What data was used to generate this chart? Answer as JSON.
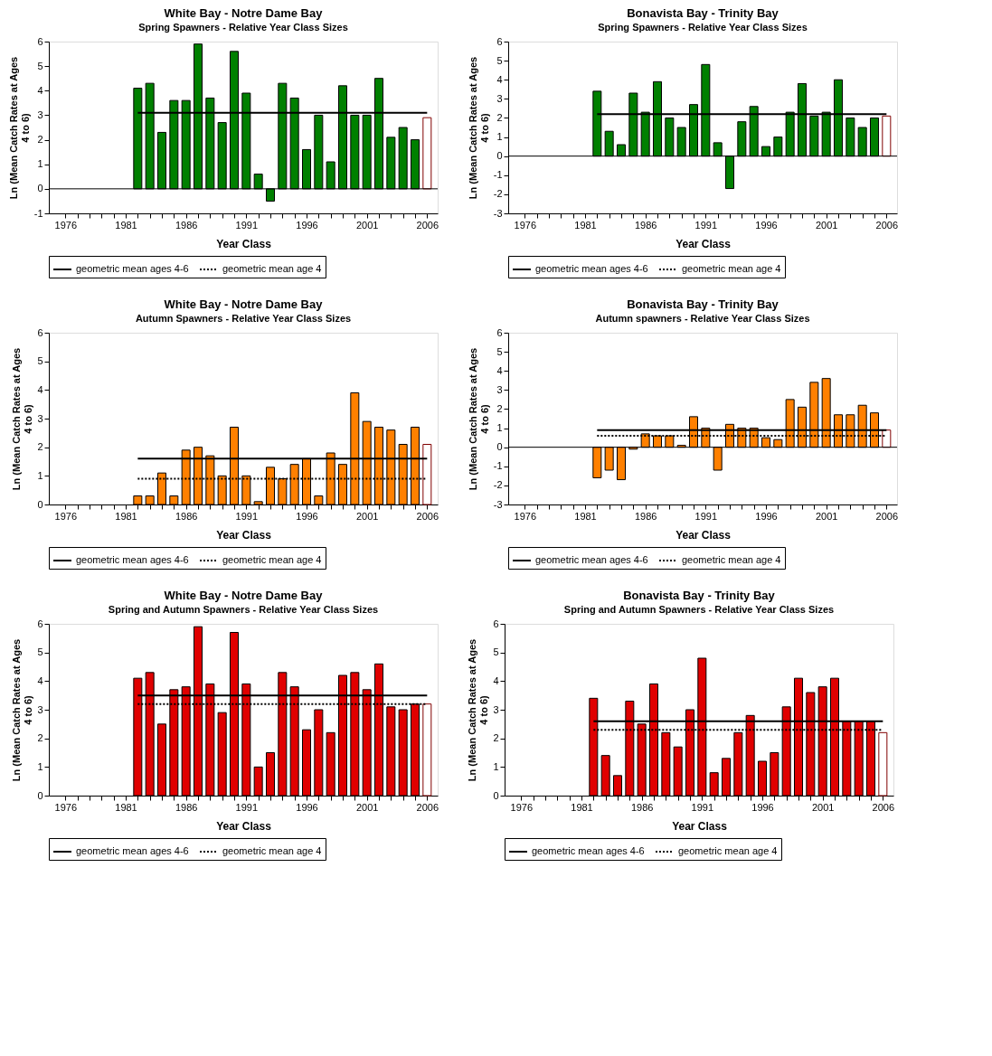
{
  "chart_data": [
    {
      "type": "bar",
      "title": "White Bay - Notre Dame Bay",
      "subtitle": "Spring Spawners - Relative Year Class Sizes",
      "xlabel": "Year Class",
      "ylabel": "Ln (Mean Catch Rates at Ages\n4 to 6)",
      "xlim": [
        1975,
        2006.5
      ],
      "ylim": [
        -1,
        6
      ],
      "yticks": [
        -1,
        0,
        1,
        2,
        3,
        4,
        5,
        6
      ],
      "xticks": [
        1976,
        {
          "value": 1977,
          "label": null
        },
        {
          "value": 1978,
          "label": null
        },
        {
          "value": 1979,
          "label": null
        },
        {
          "value": 1980,
          "label": null
        },
        1981,
        {
          "value": 1982,
          "label": null
        },
        {
          "value": 1983,
          "label": null
        },
        {
          "value": 1984,
          "label": null
        },
        {
          "value": 1985,
          "label": null
        },
        1986,
        {
          "value": 1987,
          "label": null
        },
        {
          "value": 1988,
          "label": null
        },
        {
          "value": 1989,
          "label": null
        },
        {
          "value": 1990,
          "label": null
        },
        1991,
        {
          "value": 1992,
          "label": null
        },
        {
          "value": 1993,
          "label": null
        },
        {
          "value": 1994,
          "label": null
        },
        {
          "value": 1995,
          "label": null
        },
        1996,
        {
          "value": 1997,
          "label": null
        },
        {
          "value": 1998,
          "label": null
        },
        {
          "value": 1999,
          "label": null
        },
        {
          "value": 2000,
          "label": null
        },
        2001,
        {
          "value": 2002,
          "label": null
        },
        {
          "value": 2003,
          "label": null
        },
        {
          "value": 2004,
          "label": null
        },
        {
          "value": 2005,
          "label": null
        },
        2006
      ],
      "grid": false,
      "legend": "bottom",
      "marker": "none",
      "ref_lines": [
        {
          "axis": "y",
          "value": 0,
          "color": "#000000"
        }
      ],
      "series": [
        {
          "color": "#008000",
          "x": [
            1982,
            1983,
            1984,
            1985,
            1986,
            1987,
            1988,
            1989,
            1990,
            1991,
            1992,
            1993,
            1994,
            1995,
            1996,
            1997,
            1998,
            1999,
            2000,
            2001,
            2002,
            2003,
            2004,
            2005
          ],
          "values": [
            4.1,
            4.3,
            2.3,
            3.6,
            3.6,
            5.9,
            3.7,
            2.7,
            5.6,
            3.9,
            0.6,
            -0.5,
            4.3,
            3.7,
            1.6,
            3.0,
            1.1,
            4.2,
            3.0,
            3.0,
            4.5,
            2.1,
            2.5,
            2.0
          ]
        },
        {
          "color": "#ffffff",
          "x": [
            2006
          ],
          "values": [
            2.9
          ]
        },
        {
          "type": "line",
          "name": "geometric mean ages 4-6",
          "color": "#000000",
          "line_style": "solid",
          "x": [
            1982,
            2006
          ],
          "values": [
            3.1,
            3.1
          ]
        },
        {
          "type": "line",
          "name": "geometric mean age 4",
          "line_style": "dotted"
        }
      ]
    },
    {
      "type": "bar",
      "title": "Bonavista Bay - Trinity Bay",
      "subtitle": "Spring Spawners - Relative Year Class Sizes",
      "xlabel": "Year Class",
      "ylabel": "Ln (Mean Catch Rates at Ages\n4 to 6)",
      "xlim": [
        1975,
        2006.5
      ],
      "ylim": [
        -3,
        6
      ],
      "yticks": [
        -3,
        -2,
        -1,
        0,
        1,
        2,
        3,
        4,
        5,
        6
      ],
      "xticks": [
        1976,
        {
          "value": 1977,
          "label": null
        },
        {
          "value": 1978,
          "label": null
        },
        {
          "value": 1979,
          "label": null
        },
        {
          "value": 1980,
          "label": null
        },
        1981,
        {
          "value": 1982,
          "label": null
        },
        {
          "value": 1983,
          "label": null
        },
        {
          "value": 1984,
          "label": null
        },
        {
          "value": 1985,
          "label": null
        },
        1986,
        {
          "value": 1987,
          "label": null
        },
        {
          "value": 1988,
          "label": null
        },
        {
          "value": 1989,
          "label": null
        },
        {
          "value": 1990,
          "label": null
        },
        1991,
        {
          "value": 1992,
          "label": null
        },
        {
          "value": 1993,
          "label": null
        },
        {
          "value": 1994,
          "label": null
        },
        {
          "value": 1995,
          "label": null
        },
        1996,
        {
          "value": 1997,
          "label": null
        },
        {
          "value": 1998,
          "label": null
        },
        {
          "value": 1999,
          "label": null
        },
        {
          "value": 2000,
          "label": null
        },
        2001,
        {
          "value": 2002,
          "label": null
        },
        {
          "value": 2003,
          "label": null
        },
        {
          "value": 2004,
          "label": null
        },
        {
          "value": 2005,
          "label": null
        },
        2006
      ],
      "grid": false,
      "legend": "bottom",
      "marker": "none",
      "ref_lines": [
        {
          "axis": "y",
          "value": 0,
          "color": "#000000"
        }
      ],
      "series": [
        {
          "color": "#008000",
          "x": [
            1982,
            1983,
            1984,
            1985,
            1986,
            1987,
            1988,
            1989,
            1990,
            1991,
            1992,
            1993,
            1994,
            1995,
            1996,
            1997,
            1998,
            1999,
            2000,
            2001,
            2002,
            2003,
            2004,
            2005
          ],
          "values": [
            3.4,
            1.3,
            0.6,
            3.3,
            2.3,
            3.9,
            2.0,
            1.5,
            2.7,
            4.8,
            0.7,
            -1.7,
            1.8,
            2.6,
            0.5,
            1.0,
            2.3,
            3.8,
            2.1,
            2.3,
            4.0,
            2.0,
            1.5,
            2.0
          ]
        },
        {
          "color": "#ffffff",
          "x": [
            2006
          ],
          "values": [
            2.1
          ]
        },
        {
          "type": "line",
          "name": "geometric mean ages 4-6",
          "color": "#000000",
          "line_style": "solid",
          "x": [
            1982,
            2006
          ],
          "values": [
            2.2,
            2.2
          ]
        },
        {
          "type": "line",
          "name": "geometric mean age 4",
          "line_style": "dotted"
        }
      ]
    },
    {
      "type": "bar",
      "title": "White Bay - Notre Dame Bay",
      "subtitle": "Autumn Spawners - Relative Year Class Sizes",
      "xlabel": "Year Class",
      "ylabel": "Ln (Mean Catch Rates at Ages\n4 to 6)",
      "xlim": [
        1975,
        2006.5
      ],
      "ylim": [
        0,
        6
      ],
      "yticks": [
        0,
        1,
        2,
        3,
        4,
        5,
        6
      ],
      "xticks": [
        1976,
        {
          "value": 1977,
          "label": null
        },
        {
          "value": 1978,
          "label": null
        },
        {
          "value": 1979,
          "label": null
        },
        {
          "value": 1980,
          "label": null
        },
        1981,
        {
          "value": 1982,
          "label": null
        },
        {
          "value": 1983,
          "label": null
        },
        {
          "value": 1984,
          "label": null
        },
        {
          "value": 1985,
          "label": null
        },
        1986,
        {
          "value": 1987,
          "label": null
        },
        {
          "value": 1988,
          "label": null
        },
        {
          "value": 1989,
          "label": null
        },
        {
          "value": 1990,
          "label": null
        },
        1991,
        {
          "value": 1992,
          "label": null
        },
        {
          "value": 1993,
          "label": null
        },
        {
          "value": 1994,
          "label": null
        },
        {
          "value": 1995,
          "label": null
        },
        1996,
        {
          "value": 1997,
          "label": null
        },
        {
          "value": 1998,
          "label": null
        },
        {
          "value": 1999,
          "label": null
        },
        {
          "value": 2000,
          "label": null
        },
        2001,
        {
          "value": 2002,
          "label": null
        },
        {
          "value": 2003,
          "label": null
        },
        {
          "value": 2004,
          "label": null
        },
        {
          "value": 2005,
          "label": null
        },
        2006
      ],
      "grid": false,
      "legend": "bottom",
      "marker": "none",
      "series": [
        {
          "color": "#ff8000",
          "x": [
            1982,
            1983,
            1984,
            1985,
            1986,
            1987,
            1988,
            1989,
            1990,
            1991,
            1992,
            1993,
            1994,
            1995,
            1996,
            1997,
            1998,
            1999,
            2000,
            2001,
            2002,
            2003,
            2004,
            2005
          ],
          "values": [
            0.3,
            0.3,
            1.1,
            0.3,
            1.9,
            2.0,
            1.7,
            1.0,
            2.7,
            1.0,
            0.1,
            1.3,
            0.9,
            1.4,
            1.6,
            0.3,
            1.8,
            1.4,
            3.9,
            2.9,
            2.7,
            2.6,
            2.1,
            2.7
          ]
        },
        {
          "color": "#ffffff",
          "x": [
            2006
          ],
          "values": [
            2.1
          ]
        },
        {
          "type": "line",
          "name": "geometric mean ages 4-6",
          "color": "#000000",
          "line_style": "solid",
          "x": [
            1982,
            2006
          ],
          "values": [
            1.6,
            1.6
          ]
        },
        {
          "type": "line",
          "name": "geometric mean age 4",
          "color": "#000000",
          "line_style": "dotted",
          "x": [
            1982,
            2006
          ],
          "values": [
            0.9,
            0.9
          ]
        }
      ]
    },
    {
      "type": "bar",
      "title": "Bonavista Bay - Trinity Bay",
      "subtitle": "Autumn spawners - Relative Year Class Sizes",
      "xlabel": "Year Class",
      "ylabel": "Ln (Mean Catch Rates at Ages\n4 to 6)",
      "xlim": [
        1975,
        2006.5
      ],
      "ylim": [
        -3,
        6
      ],
      "yticks": [
        -3,
        -2,
        -1,
        0,
        1,
        2,
        3,
        4,
        5,
        6
      ],
      "xticks": [
        1976,
        {
          "value": 1977,
          "label": null
        },
        {
          "value": 1978,
          "label": null
        },
        {
          "value": 1979,
          "label": null
        },
        {
          "value": 1980,
          "label": null
        },
        1981,
        {
          "value": 1982,
          "label": null
        },
        {
          "value": 1983,
          "label": null
        },
        {
          "value": 1984,
          "label": null
        },
        {
          "value": 1985,
          "label": null
        },
        1986,
        {
          "value": 1987,
          "label": null
        },
        {
          "value": 1988,
          "label": null
        },
        {
          "value": 1989,
          "label": null
        },
        {
          "value": 1990,
          "label": null
        },
        1991,
        {
          "value": 1992,
          "label": null
        },
        {
          "value": 1993,
          "label": null
        },
        {
          "value": 1994,
          "label": null
        },
        {
          "value": 1995,
          "label": null
        },
        1996,
        {
          "value": 1997,
          "label": null
        },
        {
          "value": 1998,
          "label": null
        },
        {
          "value": 1999,
          "label": null
        },
        {
          "value": 2000,
          "label": null
        },
        2001,
        {
          "value": 2002,
          "label": null
        },
        {
          "value": 2003,
          "label": null
        },
        {
          "value": 2004,
          "label": null
        },
        {
          "value": 2005,
          "label": null
        },
        2006
      ],
      "grid": false,
      "legend": "bottom",
      "marker": "none",
      "ref_lines": [
        {
          "axis": "y",
          "value": 0,
          "color": "#000000"
        }
      ],
      "series": [
        {
          "color": "#ff8000",
          "x": [
            1982,
            1983,
            1984,
            1985,
            1986,
            1987,
            1988,
            1989,
            1990,
            1991,
            1992,
            1993,
            1994,
            1995,
            1996,
            1997,
            1998,
            1999,
            2000,
            2001,
            2002,
            2003,
            2004,
            2005
          ],
          "values": [
            -1.6,
            -1.2,
            -1.7,
            -0.1,
            0.7,
            0.6,
            0.6,
            0.1,
            1.6,
            1.0,
            -1.2,
            1.2,
            1.0,
            1.0,
            0.5,
            0.4,
            2.5,
            2.1,
            3.4,
            3.6,
            1.7,
            1.7,
            2.2,
            1.8
          ]
        },
        {
          "color": "#ffffff",
          "x": [
            2006
          ],
          "values": [
            0.9
          ]
        },
        {
          "type": "line",
          "name": "geometric mean ages 4-6",
          "color": "#000000",
          "line_style": "solid",
          "x": [
            1982,
            2006
          ],
          "values": [
            0.9,
            0.9
          ]
        },
        {
          "type": "line",
          "name": "geometric mean age 4",
          "color": "#000000",
          "line_style": "dotted",
          "x": [
            1982,
            2006
          ],
          "values": [
            0.6,
            0.6
          ]
        }
      ]
    },
    {
      "type": "bar",
      "title": "White Bay - Notre Dame Bay",
      "subtitle": "Spring and Autumn Spawners - Relative Year Class Sizes",
      "xlabel": "Year Class",
      "ylabel": "Ln (Mean Catch Rates at Ages\n4 to 6)",
      "xlim": [
        1975,
        2006.5
      ],
      "ylim": [
        0,
        6
      ],
      "yticks": [
        0,
        1,
        2,
        3,
        4,
        5,
        6
      ],
      "xticks": [
        1976,
        {
          "value": 1977,
          "label": null
        },
        {
          "value": 1978,
          "label": null
        },
        {
          "value": 1979,
          "label": null
        },
        {
          "value": 1980,
          "label": null
        },
        1981,
        {
          "value": 1982,
          "label": null
        },
        {
          "value": 1983,
          "label": null
        },
        {
          "value": 1984,
          "label": null
        },
        {
          "value": 1985,
          "label": null
        },
        1986,
        {
          "value": 1987,
          "label": null
        },
        {
          "value": 1988,
          "label": null
        },
        {
          "value": 1989,
          "label": null
        },
        {
          "value": 1990,
          "label": null
        },
        1991,
        {
          "value": 1992,
          "label": null
        },
        {
          "value": 1993,
          "label": null
        },
        {
          "value": 1994,
          "label": null
        },
        {
          "value": 1995,
          "label": null
        },
        1996,
        {
          "value": 1997,
          "label": null
        },
        {
          "value": 1998,
          "label": null
        },
        {
          "value": 1999,
          "label": null
        },
        {
          "value": 2000,
          "label": null
        },
        2001,
        {
          "value": 2002,
          "label": null
        },
        {
          "value": 2003,
          "label": null
        },
        {
          "value": 2004,
          "label": null
        },
        {
          "value": 2005,
          "label": null
        },
        2006
      ],
      "grid": false,
      "legend": "bottom",
      "marker": "none",
      "series": [
        {
          "color": "#e00000",
          "x": [
            1982,
            1983,
            1984,
            1985,
            1986,
            1987,
            1988,
            1989,
            1990,
            1991,
            1992,
            1993,
            1994,
            1995,
            1996,
            1997,
            1998,
            1999,
            2000,
            2001,
            2002,
            2003,
            2004,
            2005
          ],
          "values": [
            4.1,
            4.3,
            2.5,
            3.7,
            3.8,
            5.9,
            3.9,
            2.9,
            5.7,
            3.9,
            1.0,
            1.5,
            4.3,
            3.8,
            2.3,
            3.0,
            2.2,
            4.2,
            4.3,
            3.7,
            4.6,
            3.1,
            3.0,
            3.2
          ]
        },
        {
          "color": "#ffffff",
          "x": [
            2006
          ],
          "values": [
            3.2
          ]
        },
        {
          "type": "line",
          "name": "geometric mean ages 4-6",
          "color": "#000000",
          "line_style": "solid",
          "x": [
            1982,
            2006
          ],
          "values": [
            3.5,
            3.5
          ]
        },
        {
          "type": "line",
          "name": "geometric mean age 4",
          "color": "#000000",
          "line_style": "dotted",
          "x": [
            1982,
            2006
          ],
          "values": [
            3.2,
            3.2
          ]
        }
      ]
    },
    {
      "type": "bar",
      "title": "Bonavista Bay - Trinity Bay",
      "subtitle": "Spring and Autumn Spawners - Relative Year Class Sizes",
      "xlabel": "Year Class",
      "ylabel": "Ln (Mean Catch Rates at Ages\n4 to 6)",
      "xlim": [
        1975,
        2006.5
      ],
      "ylim": [
        0,
        6
      ],
      "yticks": [
        0,
        1,
        2,
        3,
        4,
        5,
        6
      ],
      "xticks": [
        1976,
        {
          "value": 1977,
          "label": null
        },
        {
          "value": 1978,
          "label": null
        },
        {
          "value": 1979,
          "label": null
        },
        {
          "value": 1980,
          "label": null
        },
        1981,
        {
          "value": 1982,
          "label": null
        },
        {
          "value": 1983,
          "label": null
        },
        {
          "value": 1984,
          "label": null
        },
        {
          "value": 1985,
          "label": null
        },
        1986,
        {
          "value": 1987,
          "label": null
        },
        {
          "value": 1988,
          "label": null
        },
        {
          "value": 1989,
          "label": null
        },
        {
          "value": 1990,
          "label": null
        },
        1991,
        {
          "value": 1992,
          "label": null
        },
        {
          "value": 1993,
          "label": null
        },
        {
          "value": 1994,
          "label": null
        },
        {
          "value": 1995,
          "label": null
        },
        1996,
        {
          "value": 1997,
          "label": null
        },
        {
          "value": 1998,
          "label": null
        },
        {
          "value": 1999,
          "label": null
        },
        {
          "value": 2000,
          "label": null
        },
        2001,
        {
          "value": 2002,
          "label": null
        },
        {
          "value": 2003,
          "label": null
        },
        {
          "value": 2004,
          "label": null
        },
        {
          "value": 2005,
          "label": null
        },
        2006
      ],
      "grid": false,
      "legend": "bottom",
      "marker": "none",
      "series": [
        {
          "color": "#e00000",
          "x": [
            1982,
            1983,
            1984,
            1985,
            1986,
            1987,
            1988,
            1989,
            1990,
            1991,
            1992,
            1993,
            1994,
            1995,
            1996,
            1997,
            1998,
            1999,
            2000,
            2001,
            2002,
            2003,
            2004,
            2005
          ],
          "values": [
            3.4,
            1.4,
            0.7,
            3.3,
            2.5,
            3.9,
            2.2,
            1.7,
            3.0,
            4.8,
            0.8,
            1.3,
            2.2,
            2.8,
            1.2,
            1.5,
            3.1,
            4.1,
            3.6,
            3.8,
            4.1,
            2.6,
            2.6,
            2.6
          ]
        },
        {
          "color": "#ffffff",
          "x": [
            2006
          ],
          "values": [
            2.2
          ]
        },
        {
          "type": "line",
          "name": "geometric mean ages 4-6",
          "color": "#000000",
          "line_style": "solid",
          "x": [
            1982,
            2006
          ],
          "values": [
            2.6,
            2.6
          ]
        },
        {
          "type": "line",
          "name": "geometric mean age 4",
          "color": "#000000",
          "line_style": "dotted",
          "x": [
            1982,
            2006
          ],
          "values": [
            2.3,
            2.3
          ]
        }
      ]
    }
  ]
}
